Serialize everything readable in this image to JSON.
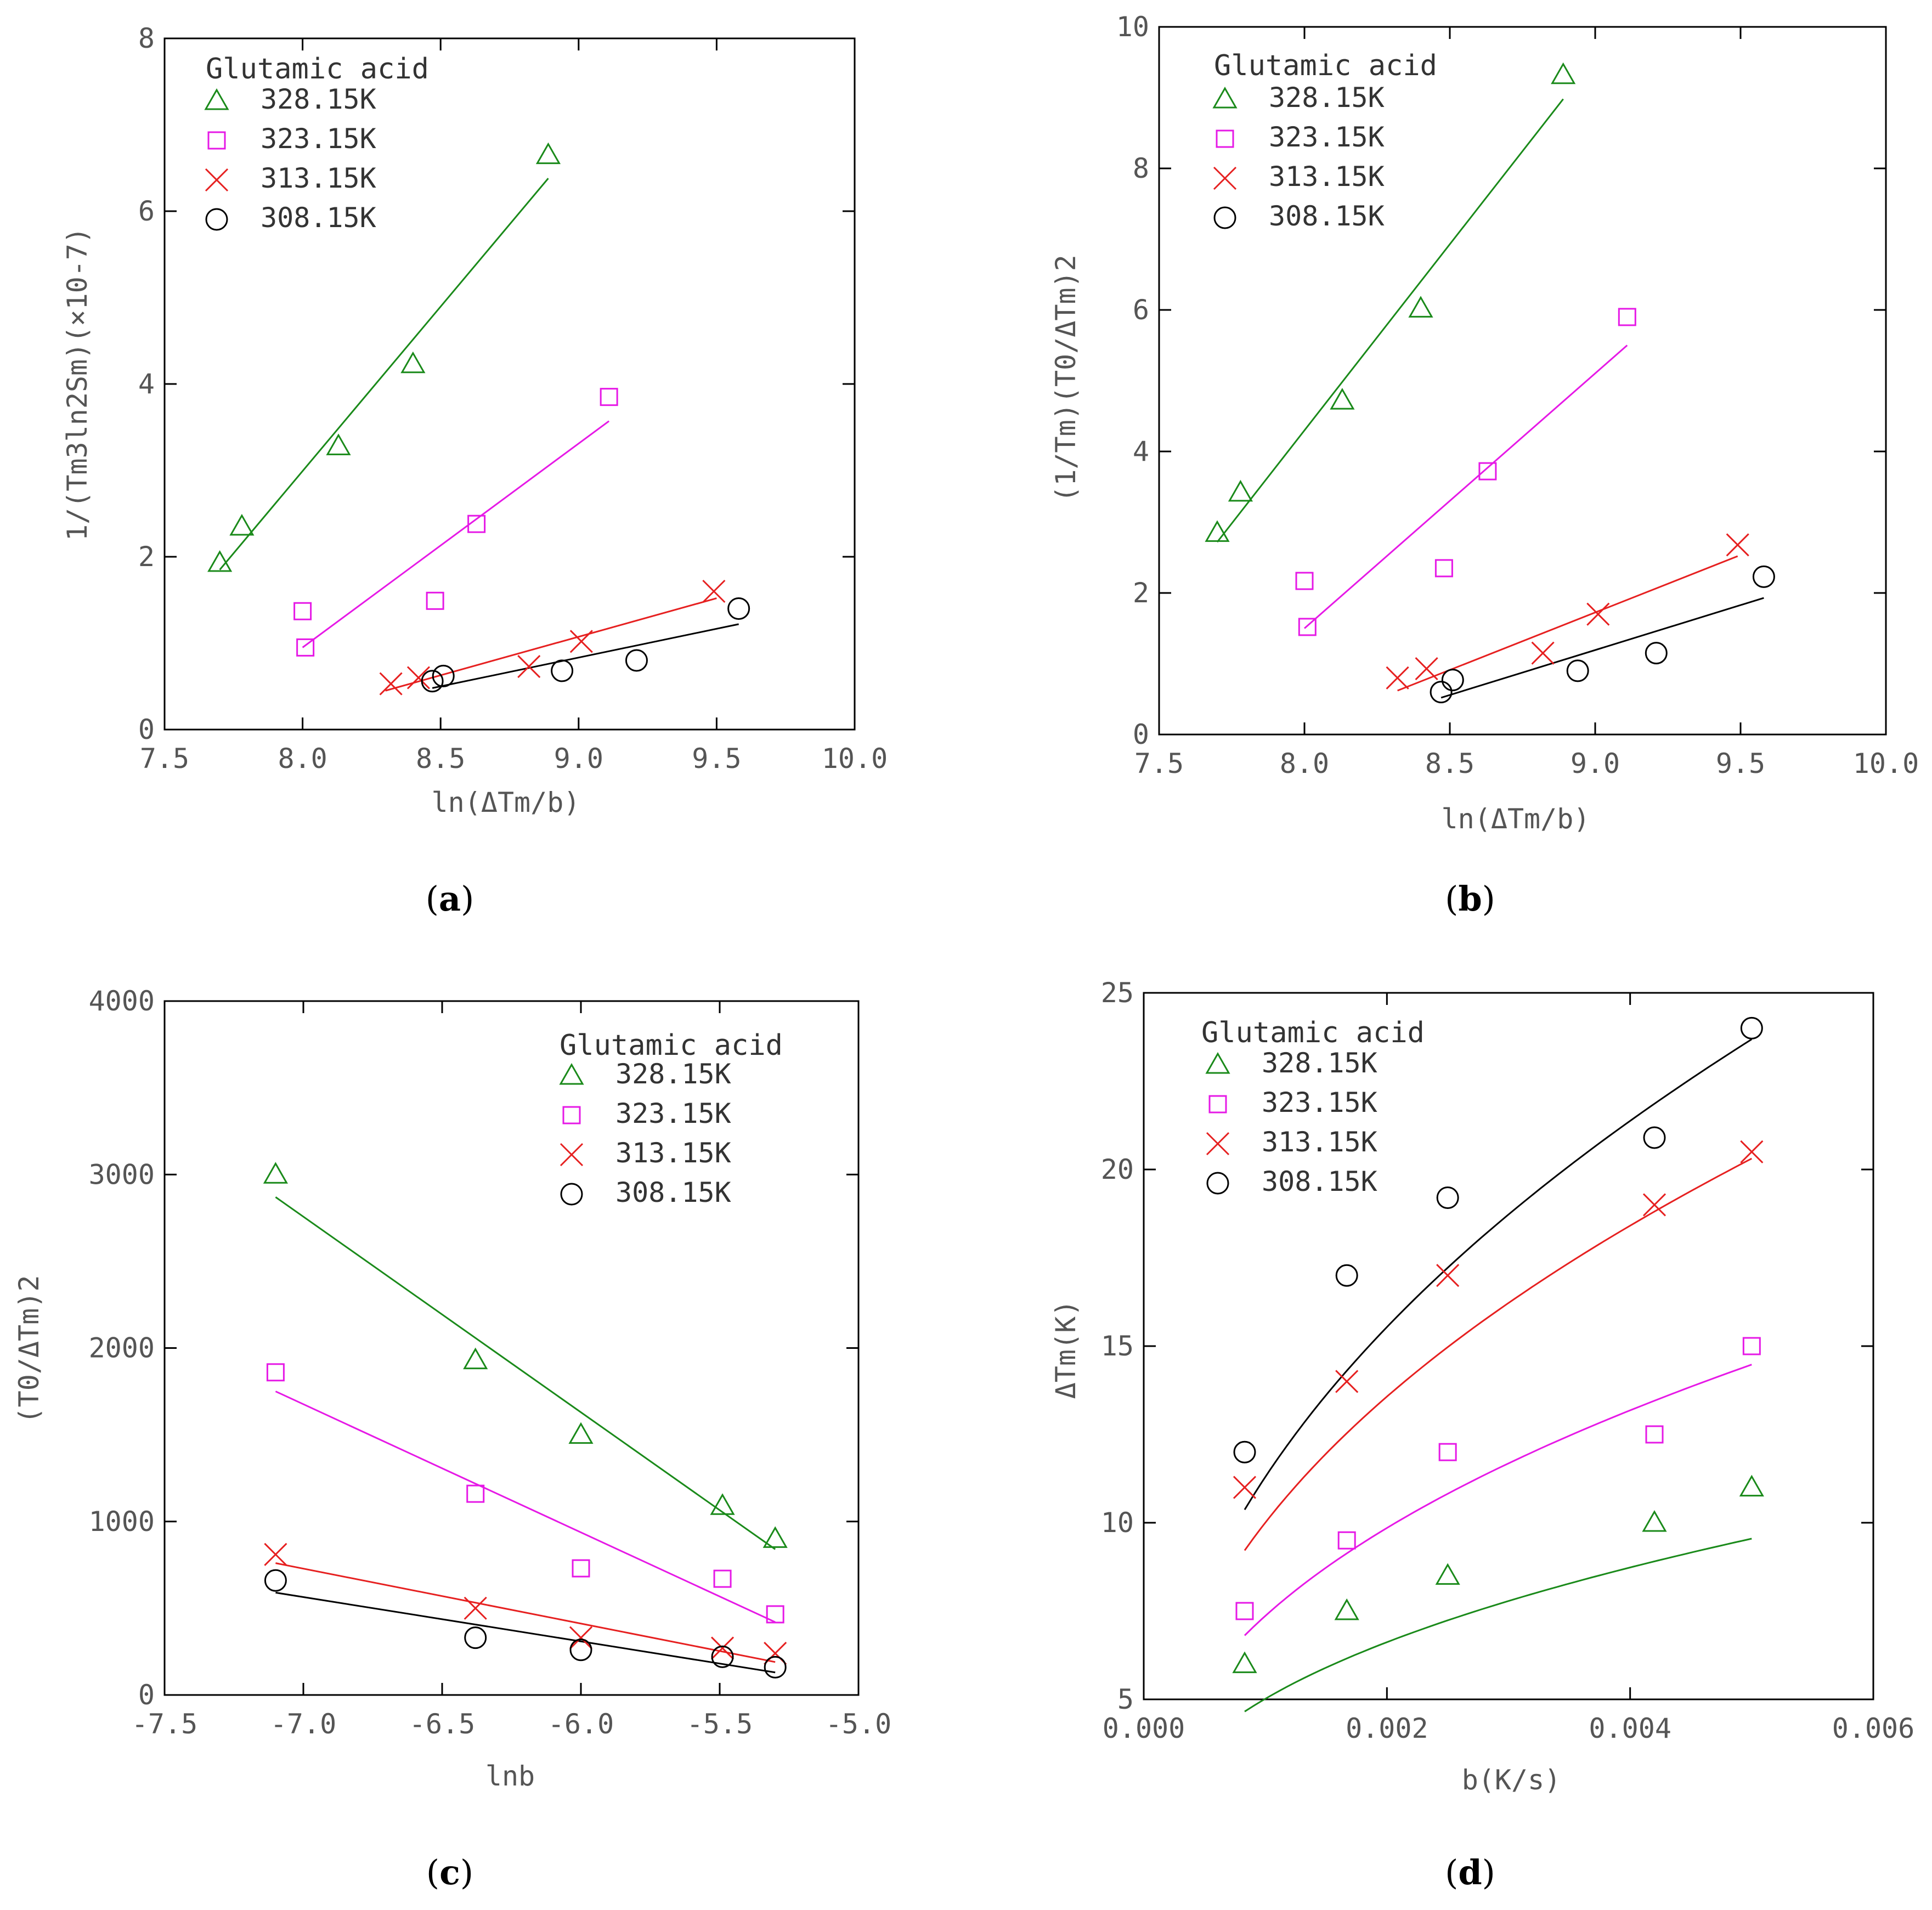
{
  "chart_data": [
    {
      "id": "a",
      "type": "scatter",
      "panel_label": "a",
      "legend_title": "Glutamic acid",
      "xlabel": "ln(ΔTm/b)",
      "ylabel": "1/(Tm3ln2Sm)(×10-7)",
      "xlim": [
        7.5,
        10.0
      ],
      "ylim": [
        0,
        8
      ],
      "xticks": [
        "7.5",
        "8.0",
        "8.5",
        "9.0",
        "9.5",
        "10.0"
      ],
      "yticks": [
        "0",
        "2",
        "4",
        "6",
        "8"
      ],
      "series": [
        {
          "name": "328.15K",
          "marker": "triangle",
          "color": "#1a8a1a",
          "x": [
            7.7,
            7.78,
            8.13,
            8.4,
            8.89
          ],
          "y": [
            1.93,
            2.35,
            3.28,
            4.23,
            6.65
          ],
          "fit": {
            "x": [
              7.7,
              8.89
            ],
            "y": [
              1.85,
              6.38
            ]
          }
        },
        {
          "name": "323.15K",
          "marker": "square",
          "color": "#e619e6",
          "x": [
            8.0,
            8.01,
            8.48,
            8.63,
            9.11
          ],
          "y": [
            1.37,
            0.95,
            1.49,
            2.38,
            3.85
          ],
          "fit": {
            "x": [
              8.0,
              9.11
            ],
            "y": [
              0.95,
              3.57
            ]
          }
        },
        {
          "name": "313.15K",
          "marker": "cross",
          "color": "#e62020",
          "x": [
            8.32,
            8.42,
            8.82,
            9.01,
            9.49
          ],
          "y": [
            0.53,
            0.6,
            0.73,
            1.02,
            1.6
          ],
          "fit": {
            "x": [
              8.3,
              9.5
            ],
            "y": [
              0.45,
              1.52
            ]
          }
        },
        {
          "name": "308.15K",
          "marker": "circle",
          "color": "#000000",
          "x": [
            8.47,
            8.51,
            8.94,
            9.21,
            9.58
          ],
          "y": [
            0.56,
            0.62,
            0.68,
            0.8,
            1.4
          ],
          "fit": {
            "x": [
              8.47,
              9.58
            ],
            "y": [
              0.48,
              1.22
            ]
          }
        }
      ]
    },
    {
      "id": "b",
      "type": "scatter",
      "panel_label": "b",
      "legend_title": "Glutamic acid",
      "xlabel": "ln(ΔTm/b)",
      "ylabel": "(1/Tm)(T0/ΔTm)2",
      "xlim": [
        7.5,
        10.0
      ],
      "ylim": [
        0,
        10
      ],
      "xticks": [
        "7.5",
        "8.0",
        "8.5",
        "9.0",
        "9.5",
        "10.0"
      ],
      "yticks": [
        "0",
        "2",
        "4",
        "6",
        "8",
        "10"
      ],
      "series": [
        {
          "name": "328.15K",
          "marker": "triangle",
          "color": "#1a8a1a",
          "x": [
            7.7,
            7.78,
            8.13,
            8.4,
            8.89
          ],
          "y": [
            2.85,
            3.42,
            4.72,
            6.02,
            9.32
          ],
          "fit": {
            "x": [
              7.7,
              8.89
            ],
            "y": [
              2.72,
              8.98
            ]
          }
        },
        {
          "name": "323.15K",
          "marker": "square",
          "color": "#e619e6",
          "x": [
            8.0,
            8.01,
            8.48,
            8.63,
            9.11
          ],
          "y": [
            2.17,
            1.52,
            2.35,
            3.72,
            5.9
          ],
          "fit": {
            "x": [
              8.0,
              9.11
            ],
            "y": [
              1.5,
              5.5
            ]
          }
        },
        {
          "name": "313.15K",
          "marker": "cross",
          "color": "#e62020",
          "x": [
            8.32,
            8.42,
            8.82,
            9.01,
            9.49
          ],
          "y": [
            0.8,
            0.93,
            1.15,
            1.7,
            2.68
          ],
          "fit": {
            "x": [
              8.32,
              9.49
            ],
            "y": [
              0.62,
              2.52
            ]
          }
        },
        {
          "name": "308.15K",
          "marker": "circle",
          "color": "#000000",
          "x": [
            8.47,
            8.51,
            8.94,
            9.21,
            9.58
          ],
          "y": [
            0.6,
            0.77,
            0.9,
            1.15,
            2.23
          ],
          "fit": {
            "x": [
              8.47,
              9.58
            ],
            "y": [
              0.52,
              1.93
            ]
          }
        }
      ]
    },
    {
      "id": "c",
      "type": "scatter",
      "panel_label": "c",
      "legend_title": "Glutamic acid",
      "xlabel": "lnb",
      "ylabel": "(T0/ΔTm)2",
      "xlim": [
        -7.5,
        -5.0
      ],
      "ylim": [
        0,
        4000
      ],
      "xticks": [
        "-7.5",
        "-7.0",
        "-6.5",
        "-6.0",
        "-5.5",
        "-5.0"
      ],
      "yticks": [
        "0",
        "1000",
        "2000",
        "3000",
        "4000"
      ],
      "series": [
        {
          "name": "328.15K",
          "marker": "triangle",
          "color": "#1a8a1a",
          "x": [
            -7.1,
            -6.38,
            -6.0,
            -5.49,
            -5.3
          ],
          "y": [
            3000,
            1930,
            1500,
            1090,
            900
          ],
          "fit": {
            "x": [
              -7.1,
              -5.3
            ],
            "y": [
              2870,
              840
            ]
          }
        },
        {
          "name": "323.15K",
          "marker": "square",
          "color": "#e619e6",
          "x": [
            -7.1,
            -6.38,
            -6.0,
            -5.49,
            -5.3
          ],
          "y": [
            1860,
            1160,
            730,
            670,
            465
          ],
          "fit": {
            "x": [
              -7.1,
              -5.3
            ],
            "y": [
              1750,
              420
            ]
          }
        },
        {
          "name": "313.15K",
          "marker": "cross",
          "color": "#e62020",
          "x": [
            -7.1,
            -6.38,
            -6.0,
            -5.49,
            -5.3
          ],
          "y": [
            810,
            500,
            330,
            270,
            240
          ],
          "fit": {
            "x": [
              -7.1,
              -5.3
            ],
            "y": [
              760,
              190
            ]
          }
        },
        {
          "name": "308.15K",
          "marker": "circle",
          "color": "#000000",
          "x": [
            -7.1,
            -6.38,
            -6.0,
            -5.49,
            -5.3
          ],
          "y": [
            660,
            330,
            260,
            220,
            160
          ],
          "fit": {
            "x": [
              -7.1,
              -5.3
            ],
            "y": [
              590,
              130
            ]
          }
        }
      ]
    },
    {
      "id": "d",
      "type": "scatter",
      "panel_label": "d",
      "legend_title": "Glutamic acid",
      "xlabel": "b(K/s)",
      "ylabel": "ΔTm(K)",
      "xlim": [
        0.0,
        0.006
      ],
      "ylim": [
        5,
        25
      ],
      "xticks": [
        "0.000",
        "0.002",
        "0.004",
        "0.006"
      ],
      "yticks": [
        "5",
        "10",
        "15",
        "20",
        "25"
      ],
      "series": [
        {
          "name": "328.15K",
          "marker": "triangle",
          "color": "#1a8a1a",
          "x": [
            0.00083,
            0.00167,
            0.0025,
            0.0042,
            0.005
          ],
          "y": [
            6.0,
            7.5,
            8.5,
            10.0,
            11.0
          ],
          "fit": {
            "type": "power",
            "a": 79.5,
            "n": 0.4,
            "x0": 0.00083,
            "x1": 0.005
          }
        },
        {
          "name": "323.15K",
          "marker": "square",
          "color": "#e619e6",
          "x": [
            0.00083,
            0.00167,
            0.0025,
            0.0042,
            0.005
          ],
          "y": [
            7.5,
            9.5,
            12.0,
            12.5,
            15.0
          ],
          "fit": {
            "type": "power",
            "a": 134.0,
            "n": 0.42,
            "x0": 0.00083,
            "x1": 0.005
          }
        },
        {
          "name": "313.15K",
          "marker": "cross",
          "color": "#e62020",
          "x": [
            0.00083,
            0.00167,
            0.0025,
            0.0042,
            0.005
          ],
          "y": [
            11.0,
            14.0,
            17.0,
            19.0,
            20.5
          ],
          "fit": {
            "type": "power",
            "a": 209.0,
            "n": 0.44,
            "x0": 0.00083,
            "x1": 0.005
          }
        },
        {
          "name": "308.15K",
          "marker": "circle",
          "color": "#000000",
          "x": [
            0.00083,
            0.00167,
            0.0025,
            0.0042,
            0.005
          ],
          "y": [
            12.0,
            17.0,
            19.2,
            20.9,
            24.0
          ],
          "fit": {
            "type": "power",
            "a": 271.0,
            "n": 0.46,
            "x0": 0.00083,
            "x1": 0.005
          }
        }
      ]
    }
  ]
}
